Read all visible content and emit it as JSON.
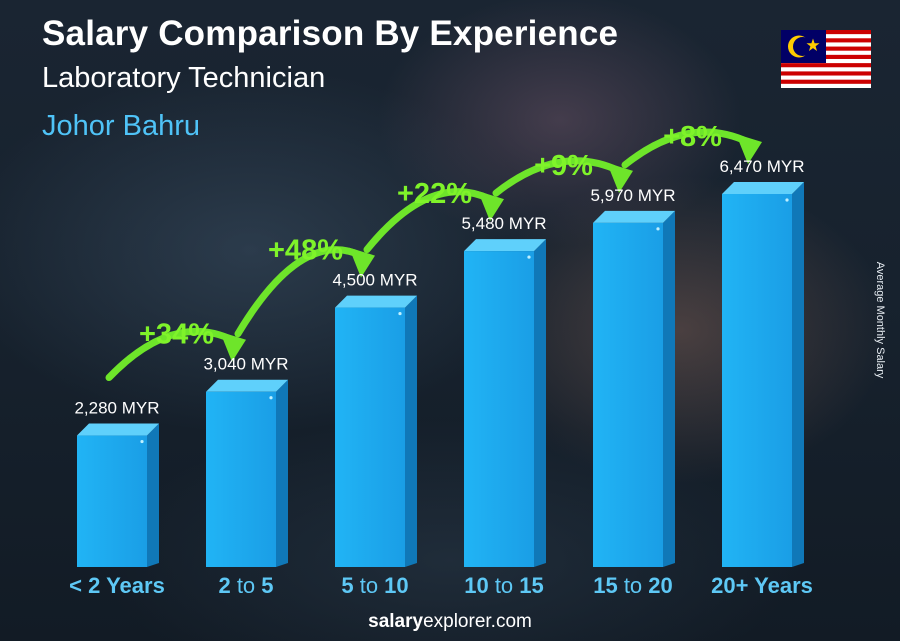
{
  "header": {
    "title": "Salary Comparison By Experience",
    "subtitle": "Laboratory Technician",
    "city": "Johor Bahru"
  },
  "side_label": "Average Monthly Salary",
  "footer": {
    "brand_bold": "salary",
    "brand_rest": "explorer.com"
  },
  "flag_icon": "malaysia-flag-icon",
  "colors": {
    "bar_front": "#1eaaf0",
    "bar_side": "#1078b8",
    "bar_top": "#5fd0fb",
    "arrow": "#6ee52a",
    "pct_text": "#7ff32a",
    "category_text": "#5ec8f5",
    "city_text": "#4fc3f7"
  },
  "chart_data": {
    "type": "bar",
    "title": "Salary Comparison By Experience",
    "categories": [
      {
        "pre": "< 2 Years",
        "mid": "",
        "post": ""
      },
      {
        "pre": "2",
        "mid": " to ",
        "post": "5"
      },
      {
        "pre": "5",
        "mid": " to ",
        "post": "10"
      },
      {
        "pre": "10",
        "mid": " to ",
        "post": "15"
      },
      {
        "pre": "15",
        "mid": " to ",
        "post": "20"
      },
      {
        "pre": "20+ Years",
        "mid": "",
        "post": ""
      }
    ],
    "values": [
      2280,
      3040,
      4500,
      5480,
      5970,
      6470
    ],
    "value_labels": [
      "2,280 MYR",
      "3,040 MYR",
      "4,500 MYR",
      "5,480 MYR",
      "5,970 MYR",
      "6,470 MYR"
    ],
    "changes": [
      "+34%",
      "+48%",
      "+22%",
      "+9%",
      "+8%"
    ],
    "unit": "MYR",
    "ylabel": "Average Monthly Salary",
    "ylim": [
      0,
      7500
    ],
    "grid": false,
    "legend": "none"
  }
}
